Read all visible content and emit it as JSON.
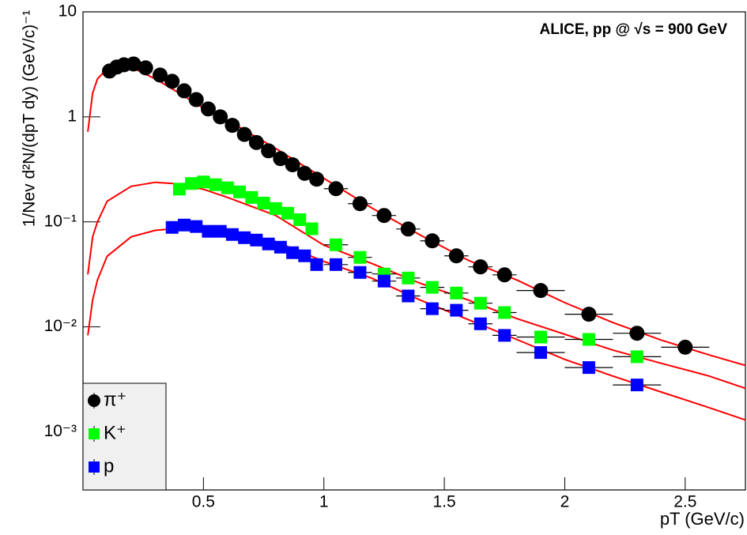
{
  "chart_data": {
    "type": "scatter",
    "title": "ALICE, pp @ √s = 900 GeV",
    "xlabel": "pT (GeV/c)",
    "ylabel": "1/Nev d²N/(dpT dy) (GeV/c)⁻¹",
    "xlim": [
      0,
      2.75
    ],
    "ylim": [
      0.00028,
      10
    ],
    "log_y": true,
    "xticks": [
      0.5,
      1,
      1.5,
      2,
      2.5
    ],
    "yticks": [
      {
        "value": 0.001,
        "label": "10⁻³"
      },
      {
        "value": 0.01,
        "label": "10⁻²"
      },
      {
        "value": 0.1,
        "label": "10⁻¹"
      },
      1,
      10
    ],
    "legend": "lower left",
    "series": [
      {
        "name": "π⁺",
        "color": "#000000",
        "marker": "circle",
        "x": [
          0.11,
          0.14,
          0.17,
          0.21,
          0.26,
          0.32,
          0.37,
          0.42,
          0.47,
          0.52,
          0.57,
          0.62,
          0.67,
          0.72,
          0.77,
          0.82,
          0.87,
          0.92,
          0.97,
          1.05,
          1.15,
          1.25,
          1.35,
          1.45,
          1.55,
          1.65,
          1.75,
          1.9,
          2.1,
          2.3,
          2.5
        ],
        "xerr": [
          0.025,
          0.025,
          0.025,
          0.025,
          0.025,
          0.025,
          0.025,
          0.025,
          0.025,
          0.025,
          0.025,
          0.025,
          0.025,
          0.025,
          0.025,
          0.025,
          0.025,
          0.025,
          0.025,
          0.05,
          0.05,
          0.05,
          0.05,
          0.05,
          0.05,
          0.05,
          0.05,
          0.1,
          0.1,
          0.1,
          0.1
        ],
        "values": [
          2.73,
          2.98,
          3.13,
          3.19,
          2.93,
          2.5,
          2.18,
          1.77,
          1.46,
          1.19,
          1.0,
          0.83,
          0.68,
          0.57,
          0.475,
          0.4,
          0.35,
          0.29,
          0.255,
          0.207,
          0.149,
          0.115,
          0.0855,
          0.066,
          0.0475,
          0.0373,
          0.0313,
          0.0222,
          0.0132,
          0.0087,
          0.0064
        ]
      },
      {
        "name": "K⁺",
        "color": "#00ff00",
        "marker": "square",
        "x": [
          0.4,
          0.45,
          0.5,
          0.55,
          0.6,
          0.65,
          0.7,
          0.75,
          0.8,
          0.85,
          0.9,
          0.95,
          1.05,
          1.15,
          1.25,
          1.35,
          1.45,
          1.55,
          1.65,
          1.75,
          1.9,
          2.1,
          2.3
        ],
        "xerr": [
          0.025,
          0.025,
          0.025,
          0.025,
          0.025,
          0.025,
          0.025,
          0.025,
          0.025,
          0.025,
          0.025,
          0.025,
          0.05,
          0.05,
          0.05,
          0.05,
          0.05,
          0.05,
          0.05,
          0.05,
          0.1,
          0.1,
          0.1
        ],
        "values": [
          0.205,
          0.232,
          0.24,
          0.226,
          0.211,
          0.193,
          0.171,
          0.151,
          0.134,
          0.121,
          0.105,
          0.086,
          0.0605,
          0.0459,
          0.0319,
          0.0292,
          0.0238,
          0.021,
          0.0168,
          0.0137,
          0.008,
          0.0076,
          0.0052
        ]
      },
      {
        "name": "p",
        "color": "#0000ff",
        "marker": "square",
        "x": [
          0.37,
          0.42,
          0.47,
          0.52,
          0.57,
          0.62,
          0.67,
          0.72,
          0.77,
          0.82,
          0.87,
          0.92,
          0.97,
          1.05,
          1.15,
          1.25,
          1.35,
          1.45,
          1.55,
          1.65,
          1.75,
          1.9,
          2.1,
          2.3
        ],
        "xerr": [
          0.025,
          0.025,
          0.025,
          0.025,
          0.025,
          0.025,
          0.025,
          0.025,
          0.025,
          0.025,
          0.025,
          0.025,
          0.025,
          0.05,
          0.05,
          0.05,
          0.05,
          0.05,
          0.05,
          0.05,
          0.05,
          0.1,
          0.1,
          0.1
        ],
        "values": [
          0.0886,
          0.0933,
          0.0903,
          0.0813,
          0.0813,
          0.0758,
          0.0707,
          0.0671,
          0.0616,
          0.0574,
          0.0509,
          0.0475,
          0.0392,
          0.0392,
          0.033,
          0.0273,
          0.0197,
          0.0149,
          0.0144,
          0.0107,
          0.0083,
          0.0057,
          0.0041,
          0.0028
        ]
      }
    ],
    "fit_curves": [
      {
        "color": "#ff0000",
        "x": [
          0.02,
          0.04,
          0.06,
          0.1,
          0.15,
          0.2,
          0.3,
          0.4,
          0.5,
          0.6,
          0.8,
          1.0,
          1.2,
          1.4,
          1.6,
          1.8,
          2.0,
          2.2,
          2.4,
          2.6,
          2.75
        ],
        "values": [
          0.72,
          1.68,
          2.3,
          2.87,
          3.08,
          2.98,
          2.3,
          1.68,
          1.21,
          0.93,
          0.5,
          0.26,
          0.135,
          0.075,
          0.043,
          0.028,
          0.017,
          0.011,
          0.0075,
          0.0054,
          0.0043
        ]
      },
      {
        "color": "#ff0000",
        "x": [
          0.02,
          0.04,
          0.06,
          0.1,
          0.2,
          0.3,
          0.4,
          0.5,
          0.6,
          0.8,
          1.0,
          1.2,
          1.4,
          1.6,
          1.8,
          2.0,
          2.2,
          2.4,
          2.6,
          2.75
        ],
        "values": [
          0.0316,
          0.072,
          0.1,
          0.157,
          0.218,
          0.238,
          0.23,
          0.204,
          0.171,
          0.115,
          0.06,
          0.04,
          0.026,
          0.018,
          0.012,
          0.0085,
          0.006,
          0.0045,
          0.0034,
          0.0026
        ]
      },
      {
        "color": "#ff0000",
        "x": [
          0.02,
          0.04,
          0.06,
          0.1,
          0.2,
          0.3,
          0.4,
          0.5,
          0.6,
          0.8,
          1.0,
          1.2,
          1.4,
          1.6,
          1.8,
          2.0,
          2.2,
          2.4,
          2.6,
          2.75
        ],
        "values": [
          0.0083,
          0.018,
          0.028,
          0.047,
          0.072,
          0.083,
          0.087,
          0.0855,
          0.08,
          0.065,
          0.042,
          0.029,
          0.018,
          0.0117,
          0.0076,
          0.0049,
          0.0034,
          0.0024,
          0.0017,
          0.0013
        ]
      }
    ]
  }
}
